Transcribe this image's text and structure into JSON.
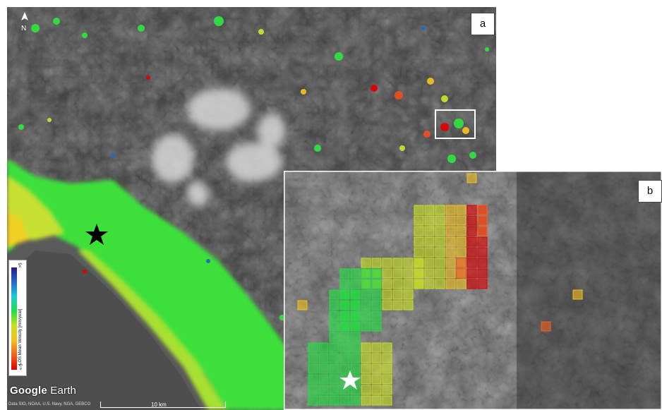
{
  "panels": {
    "a_label": "a",
    "b_label": "b"
  },
  "legend": {
    "title": "LOS Mean Velocity [mm/year]",
    "max_label": ">5",
    "min_label": "<-5",
    "colors": [
      "#2a1a8c",
      "#2468c8",
      "#20c8d8",
      "#20e040",
      "#c8e020",
      "#f0c020",
      "#f06020",
      "#e00000"
    ]
  },
  "google_earth": {
    "logo_google": "Google",
    "logo_earth": "Earth",
    "attribution": "Data SIO, NOAA, U.S. Navy, NGA, GEBCO"
  },
  "scale": {
    "label": "10 km"
  },
  "icons": {
    "north_arrow": "north-arrow-icon",
    "star_a": "black-star-icon",
    "star_b": "white-star-icon"
  }
}
